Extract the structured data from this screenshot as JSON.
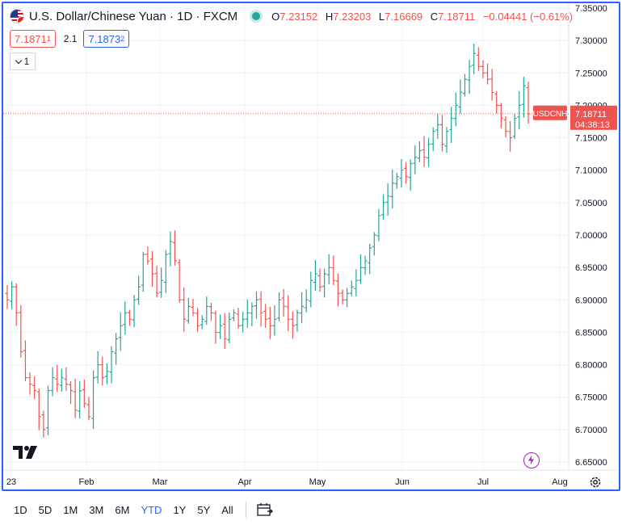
{
  "header": {
    "title": "U.S. Dollar/Chinese Yuan · 1D · FXCM",
    "open_label": "O",
    "open": "7.23152",
    "high_label": "H",
    "high": "7.23203",
    "low_label": "L",
    "low": "7.16669",
    "close_label": "C",
    "close": "7.18711",
    "change": "−0.04441 (−0.61%)"
  },
  "quote": {
    "sell_main": "7.1871",
    "sell_sup": "1",
    "spread": "2.1",
    "buy_main": "7.1873",
    "buy_sup": "2"
  },
  "indicators_toggle": {
    "count": "1"
  },
  "price_tag": {
    "symbol": "USDCNH",
    "price": "7.18711",
    "countdown": "04:38:13"
  },
  "colors": {
    "up": "#26a69a",
    "down": "#ef5350",
    "accent": "#2962ff",
    "grid": "#f0f3fa",
    "text": "#131722"
  },
  "icons": {
    "logo": "tradingview-logo-icon",
    "bolt": "lightning-icon",
    "settings": "gear-icon",
    "date_range": "calendar-range-icon"
  },
  "toolbar": {
    "ranges": [
      "1D",
      "5D",
      "1M",
      "3M",
      "6M",
      "YTD",
      "1Y",
      "5Y",
      "All"
    ],
    "active": "YTD"
  },
  "chart_data": {
    "type": "ohlc",
    "symbol": "USDCNH",
    "y_axis": {
      "min": 6.65,
      "max": 7.35,
      "ticks": [
        "7.35000",
        "7.30000",
        "7.25000",
        "7.20000",
        "7.15000",
        "7.10000",
        "7.05000",
        "7.00000",
        "6.95000",
        "6.90000",
        "6.85000",
        "6.80000",
        "6.75000",
        "6.70000",
        "6.65000"
      ],
      "position": "right"
    },
    "x_axis": {
      "labels": [
        "23",
        "Feb",
        "Mar",
        "Apr",
        "May",
        "Jun",
        "Jul",
        "Aug"
      ]
    },
    "grid": true,
    "last_price": 7.18711,
    "closes": [
      6.9,
      6.92,
      6.88,
      6.82,
      6.78,
      6.77,
      6.76,
      6.72,
      6.7,
      6.76,
      6.78,
      6.77,
      6.78,
      6.77,
      6.76,
      6.73,
      6.76,
      6.74,
      6.72,
      6.78,
      6.8,
      6.78,
      6.79,
      6.82,
      6.84,
      6.86,
      6.88,
      6.87,
      6.9,
      6.92,
      6.97,
      6.96,
      6.94,
      6.91,
      6.93,
      6.97,
      6.99,
      6.96,
      6.9,
      6.87,
      6.89,
      6.88,
      6.86,
      6.87,
      6.89,
      6.88,
      6.85,
      6.86,
      6.84,
      6.87,
      6.88,
      6.86,
      6.87,
      6.88,
      6.89,
      6.9,
      6.88,
      6.87,
      6.86,
      6.87,
      6.9,
      6.89,
      6.87,
      6.86,
      6.88,
      6.89,
      6.9,
      6.93,
      6.94,
      6.92,
      6.94,
      6.95,
      6.93,
      6.91,
      6.9,
      6.91,
      6.92,
      6.93,
      6.95,
      6.96,
      6.98,
      7.0,
      7.03,
      7.05,
      7.06,
      7.08,
      7.09,
      7.1,
      7.09,
      7.11,
      7.12,
      7.13,
      7.12,
      7.14,
      7.16,
      7.17,
      7.14,
      7.16,
      7.18,
      7.2,
      7.22,
      7.24,
      7.26,
      7.28,
      7.26,
      7.25,
      7.24,
      7.22,
      7.2,
      7.18,
      7.16,
      7.15,
      7.18,
      7.2,
      7.23,
      7.187
    ]
  }
}
